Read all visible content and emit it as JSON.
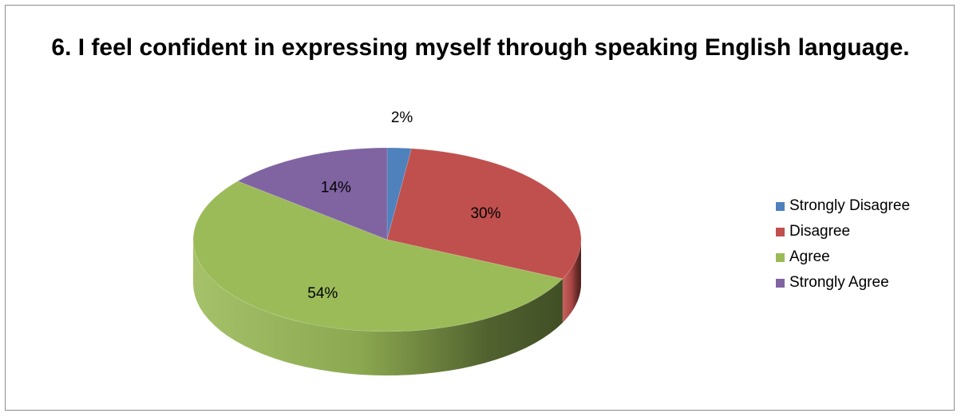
{
  "chart_data": {
    "type": "pie",
    "title": "6. I feel confident in expressing myself through speaking English language.",
    "categories": [
      "Strongly Disagree",
      "Disagree",
      "Agree",
      "Strongly Agree"
    ],
    "values": [
      2,
      30,
      54,
      14
    ],
    "labels": [
      "2%",
      "30%",
      "54%",
      "14%"
    ],
    "colors": [
      "#4f81bd",
      "#c0504d",
      "#9bbb59",
      "#8064a2"
    ],
    "legend_position": "right",
    "style": "3d"
  }
}
